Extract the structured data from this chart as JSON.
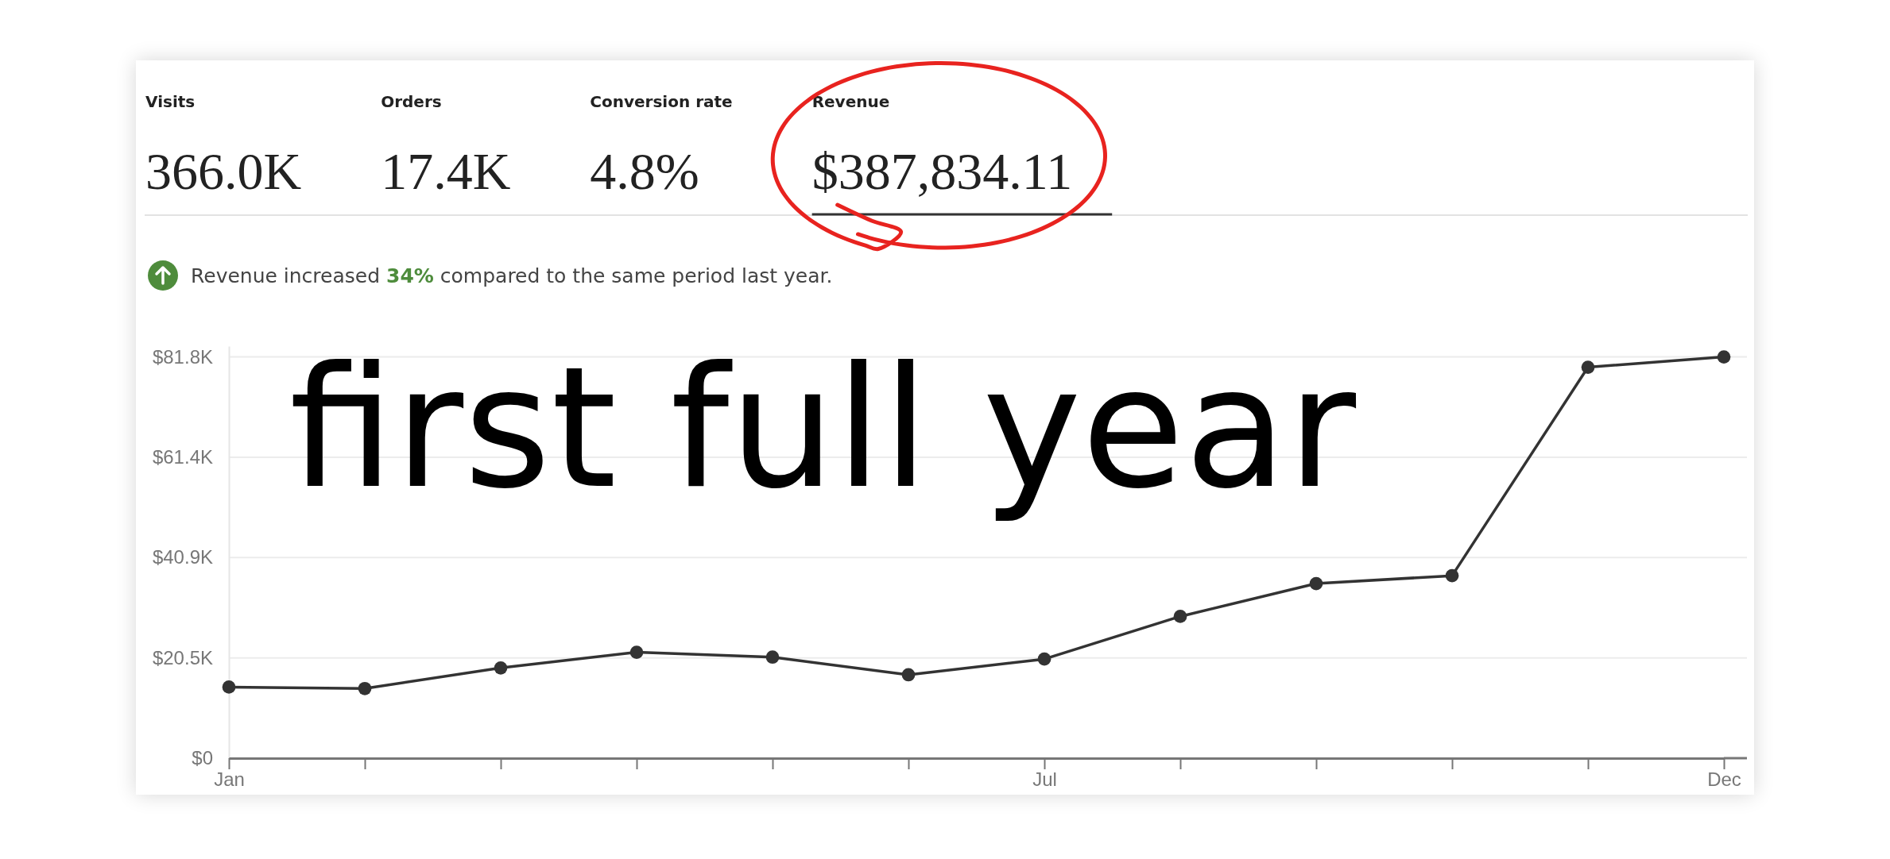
{
  "chart_data": [
    {
      "type": "other",
      "categories": [
        "Visits",
        "Orders",
        "Conversion rate",
        "Revenue"
      ],
      "value_labels": [
        "366.0K",
        "17.4K",
        "4.8%",
        "$387,834.11"
      ]
    },
    {
      "type": "line",
      "subtitle": "Revenue increased 34% compared to the same period last year.",
      "annotations": [
        "first full year"
      ],
      "categories": [
        "Jan",
        null,
        null,
        null,
        null,
        null,
        "Jul",
        null,
        null,
        null,
        null,
        "Dec"
      ],
      "values": [
        14500,
        14200,
        18400,
        21600,
        20600,
        17000,
        20200,
        28900,
        35600,
        37200,
        79700,
        81800
      ],
      "color": "#333333",
      "ylim": [
        0,
        84000
      ],
      "yticks": [
        {
          "value": 0,
          "label": "$0"
        },
        {
          "value": 20450,
          "label": "$20.5K"
        },
        {
          "value": 40900,
          "label": "$40.9K"
        },
        {
          "value": 61350,
          "label": "$61.4K"
        },
        {
          "value": 81800,
          "label": "$81.8K"
        }
      ],
      "grid": "y",
      "marker": "circle",
      "line_style": "solid"
    }
  ]
}
